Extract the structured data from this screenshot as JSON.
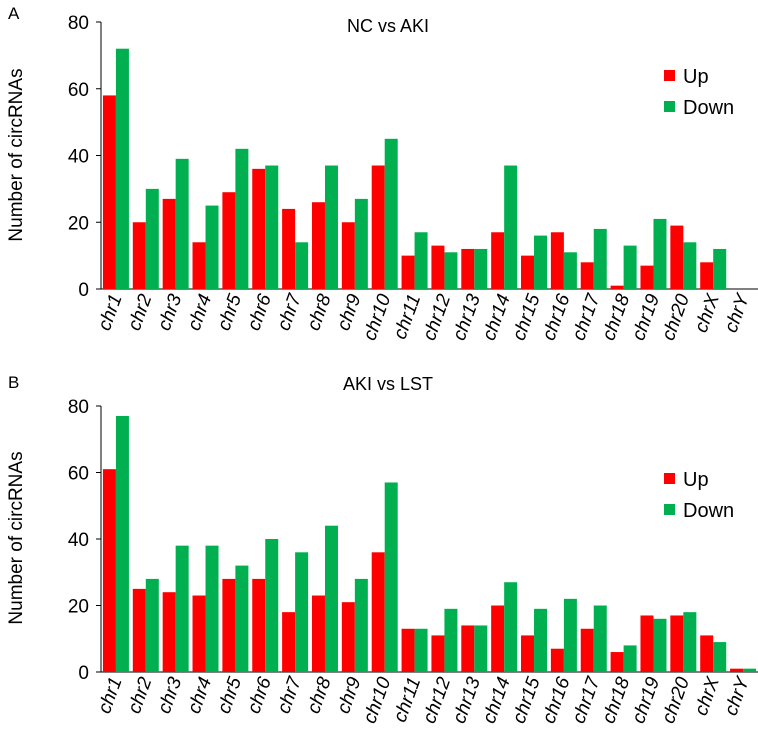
{
  "chart_data": [
    {
      "panel": "A",
      "type": "bar",
      "title": "NC vs AKI",
      "xlabel": "",
      "ylabel": "Number of circRNAs",
      "ylim": [
        0,
        80
      ],
      "yticks": [
        0,
        20,
        40,
        60,
        80
      ],
      "grid": false,
      "legend_position": "top-right",
      "categories": [
        "chr1",
        "chr2",
        "chr3",
        "chr4",
        "chr5",
        "chr6",
        "chr7",
        "chr8",
        "chr9",
        "chr10",
        "chr11",
        "chr12",
        "chr13",
        "chr14",
        "chr15",
        "chr16",
        "chr17",
        "chr18",
        "chr19",
        "chr20",
        "chrX",
        "chrY"
      ],
      "series": [
        {
          "name": "Up",
          "color": "#ff0000",
          "values": [
            58,
            20,
            27,
            14,
            29,
            36,
            24,
            26,
            20,
            37,
            10,
            13,
            12,
            17,
            10,
            17,
            8,
            1,
            7,
            19,
            8,
            0
          ]
        },
        {
          "name": "Down",
          "color": "#00b050",
          "values": [
            72,
            30,
            39,
            25,
            42,
            37,
            14,
            37,
            27,
            45,
            17,
            11,
            12,
            37,
            16,
            11,
            18,
            13,
            21,
            14,
            12,
            0
          ]
        }
      ]
    },
    {
      "panel": "B",
      "type": "bar",
      "title": "AKI vs LST",
      "xlabel": "",
      "ylabel": "Number of circRNAs",
      "ylim": [
        0,
        80
      ],
      "yticks": [
        0,
        20,
        40,
        60,
        80
      ],
      "grid": false,
      "legend_position": "top-right",
      "categories": [
        "chr1",
        "chr2",
        "chr3",
        "chr4",
        "chr5",
        "chr6",
        "chr7",
        "chr8",
        "chr9",
        "chr10",
        "chr11",
        "chr12",
        "chr13",
        "chr14",
        "chr15",
        "chr16",
        "chr17",
        "chr18",
        "chr19",
        "chr20",
        "chrX",
        "chrY"
      ],
      "series": [
        {
          "name": "Up",
          "color": "#ff0000",
          "values": [
            61,
            25,
            24,
            23,
            28,
            28,
            18,
            23,
            21,
            36,
            13,
            11,
            14,
            20,
            11,
            7,
            13,
            6,
            17,
            17,
            11,
            1
          ]
        },
        {
          "name": "Down",
          "color": "#00b050",
          "values": [
            77,
            28,
            38,
            38,
            32,
            40,
            36,
            44,
            28,
            57,
            13,
            19,
            14,
            27,
            19,
            22,
            20,
            8,
            16,
            18,
            9,
            1
          ]
        }
      ]
    }
  ]
}
